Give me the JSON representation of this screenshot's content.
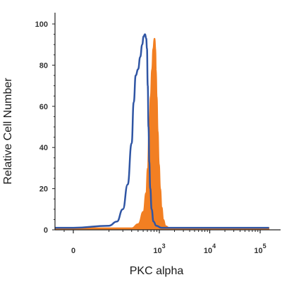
{
  "chart_data": {
    "type": "area",
    "title": "",
    "xlabel": "PKC alpha",
    "ylabel": "Relative Cell Number",
    "x_scale": "biexponential",
    "xlim": [
      -200,
      150000
    ],
    "ylim": [
      0,
      100
    ],
    "grid": false,
    "y_ticks": [
      {
        "value": 0,
        "label": "0"
      },
      {
        "value": 20,
        "label": "20"
      },
      {
        "value": 40,
        "label": "40"
      },
      {
        "value": 60,
        "label": "60"
      },
      {
        "value": 80,
        "label": "80"
      },
      {
        "value": 100,
        "label": "100"
      }
    ],
    "x_ticks": [
      {
        "value": 0,
        "base": "0",
        "exp": ""
      },
      {
        "value": 1000,
        "base": "10",
        "exp": "3"
      },
      {
        "value": 10000,
        "base": "10",
        "exp": "4"
      },
      {
        "value": 100000,
        "base": "10",
        "exp": "5"
      }
    ],
    "series": [
      {
        "style": "outline",
        "color": "#2f55a4",
        "points": [
          [
            -200,
            1
          ],
          [
            0,
            1
          ],
          [
            100,
            2
          ],
          [
            150,
            4
          ],
          [
            200,
            10
          ],
          [
            250,
            22
          ],
          [
            300,
            42
          ],
          [
            330,
            62
          ],
          [
            360,
            75
          ],
          [
            400,
            78
          ],
          [
            440,
            84
          ],
          [
            480,
            90
          ],
          [
            510,
            94
          ],
          [
            540,
            95
          ],
          [
            570,
            93
          ],
          [
            590,
            88
          ],
          [
            610,
            70
          ],
          [
            630,
            50
          ],
          [
            650,
            33
          ],
          [
            680,
            20
          ],
          [
            720,
            10
          ],
          [
            780,
            4
          ],
          [
            880,
            2
          ],
          [
            1100,
            1
          ],
          [
            150000,
            1
          ]
        ]
      },
      {
        "style": "filled",
        "color": "#f27f22",
        "points": [
          [
            -200,
            1
          ],
          [
            300,
            1
          ],
          [
            400,
            3
          ],
          [
            500,
            9
          ],
          [
            560,
            18
          ],
          [
            600,
            30
          ],
          [
            640,
            48
          ],
          [
            680,
            65
          ],
          [
            720,
            78
          ],
          [
            760,
            88
          ],
          [
            800,
            93
          ],
          [
            830,
            93
          ],
          [
            860,
            88
          ],
          [
            880,
            78
          ],
          [
            910,
            65
          ],
          [
            950,
            48
          ],
          [
            1000,
            32
          ],
          [
            1060,
            20
          ],
          [
            1130,
            11
          ],
          [
            1220,
            5
          ],
          [
            1350,
            2
          ],
          [
            1600,
            1
          ],
          [
            150000,
            1
          ]
        ]
      }
    ]
  }
}
